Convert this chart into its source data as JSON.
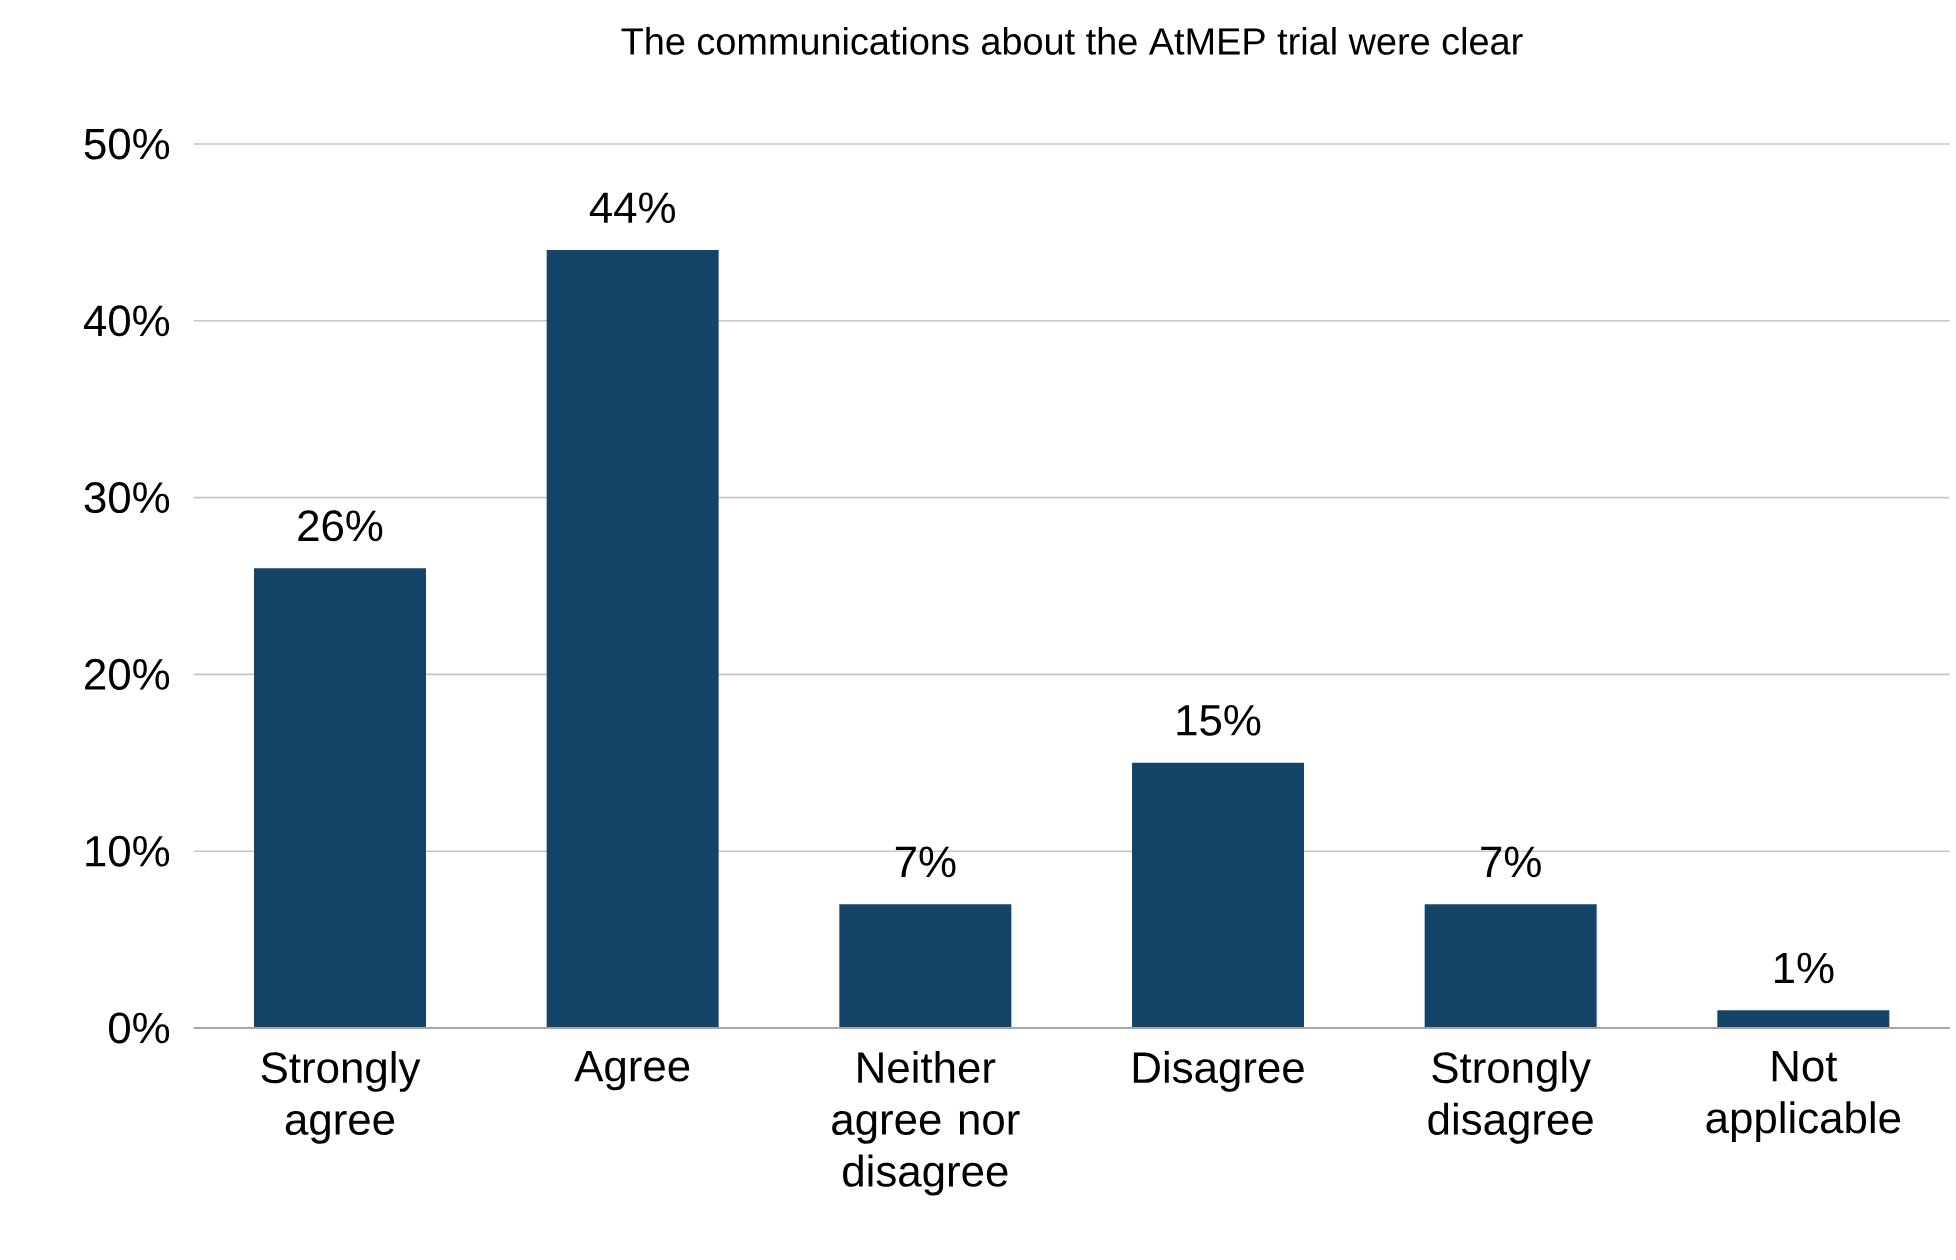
{
  "chart_data": {
    "type": "bar",
    "title": "The communications about the AtMEP trial were clear",
    "categories": [
      "Strongly agree",
      "Agree",
      "Neither agree nor disagree",
      "Disagree",
      "Strongly disagree",
      "Not applicable"
    ],
    "values": [
      26,
      44,
      7,
      15,
      7,
      1
    ],
    "value_labels": [
      "26%",
      "44%",
      "7%",
      "15%",
      "7%",
      "1%"
    ],
    "color": "#154469",
    "ylim": [
      0,
      50
    ],
    "yticks": [
      {
        "value": 0,
        "label": "0%"
      },
      {
        "value": 10,
        "label": "10%"
      },
      {
        "value": 20,
        "label": "20%"
      },
      {
        "value": 30,
        "label": "30%"
      },
      {
        "value": 40,
        "label": "40%"
      },
      {
        "value": 50,
        "label": "50%"
      }
    ],
    "grid": "y"
  }
}
